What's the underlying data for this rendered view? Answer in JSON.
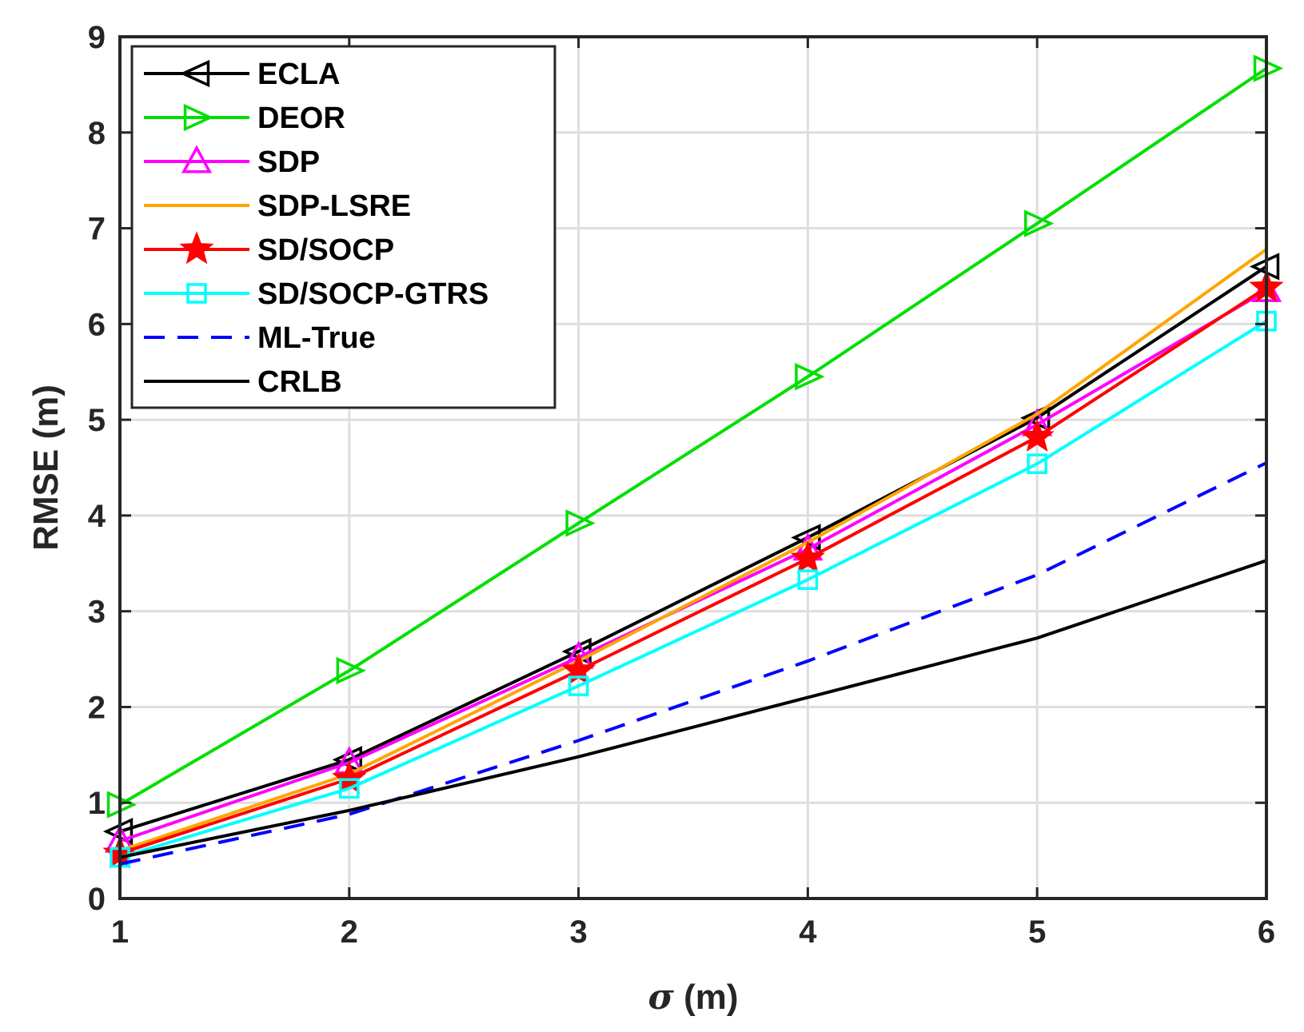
{
  "chart_data": {
    "type": "line",
    "title": "",
    "xlabel_symbol": "σ",
    "xlabel_unit": " (m)",
    "ylabel": "RMSE (m)",
    "x": [
      1,
      2,
      3,
      4,
      5,
      6
    ],
    "xlim": [
      1,
      6
    ],
    "ylim": [
      0,
      9
    ],
    "xticks": [
      "1",
      "2",
      "3",
      "4",
      "5",
      "6"
    ],
    "yticks": [
      "0",
      "1",
      "2",
      "3",
      "4",
      "5",
      "6",
      "7",
      "8",
      "9"
    ],
    "grid": true,
    "legend_location": "top-left",
    "series": [
      {
        "name": "ECLA",
        "color": "#000000",
        "marker": "triangle-left",
        "dash": "solid",
        "values": [
          0.7,
          1.45,
          2.58,
          3.77,
          5.02,
          6.6
        ]
      },
      {
        "name": "DEOR",
        "color": "#00e000",
        "marker": "triangle-right",
        "dash": "solid",
        "values": [
          0.98,
          2.38,
          3.92,
          5.45,
          7.05,
          8.67
        ]
      },
      {
        "name": "SDP",
        "color": "#ff00ff",
        "marker": "triangle-up",
        "dash": "solid",
        "values": [
          0.6,
          1.42,
          2.52,
          3.65,
          4.95,
          6.35
        ]
      },
      {
        "name": "SDP-LSRE",
        "color": "#ffa500",
        "marker": "none",
        "dash": "solid",
        "values": [
          0.5,
          1.3,
          2.48,
          3.72,
          5.06,
          6.78
        ]
      },
      {
        "name": "SD/SOCP",
        "color": "#ff0000",
        "marker": "star",
        "dash": "solid",
        "values": [
          0.47,
          1.25,
          2.38,
          3.55,
          4.82,
          6.38
        ]
      },
      {
        "name": "SD/SOCP-GTRS",
        "color": "#00ffff",
        "marker": "square",
        "dash": "solid",
        "values": [
          0.43,
          1.15,
          2.22,
          3.33,
          4.54,
          6.03
        ]
      },
      {
        "name": "ML-True",
        "color": "#0000ff",
        "marker": "none",
        "dash": "dashed",
        "values": [
          0.36,
          0.88,
          1.65,
          2.48,
          3.38,
          4.55
        ]
      },
      {
        "name": "CRLB",
        "color": "#000000",
        "marker": "none",
        "dash": "solid",
        "values": [
          0.43,
          0.92,
          1.48,
          2.1,
          2.72,
          3.53
        ]
      }
    ]
  }
}
